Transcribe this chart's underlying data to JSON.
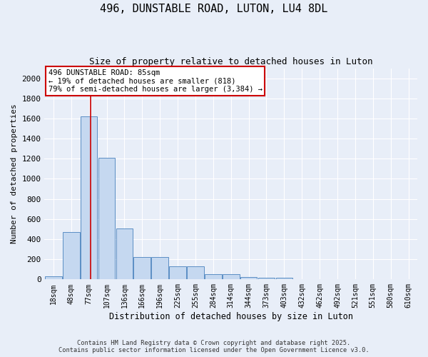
{
  "title1": "496, DUNSTABLE ROAD, LUTON, LU4 8DL",
  "title2": "Size of property relative to detached houses in Luton",
  "xlabel": "Distribution of detached houses by size in Luton",
  "ylabel": "Number of detached properties",
  "categories": [
    "18sqm",
    "48sqm",
    "77sqm",
    "107sqm",
    "136sqm",
    "166sqm",
    "196sqm",
    "225sqm",
    "255sqm",
    "284sqm",
    "314sqm",
    "344sqm",
    "373sqm",
    "403sqm",
    "432sqm",
    "462sqm",
    "492sqm",
    "521sqm",
    "551sqm",
    "580sqm",
    "610sqm"
  ],
  "values": [
    30,
    470,
    1620,
    1210,
    510,
    220,
    220,
    130,
    130,
    50,
    50,
    25,
    20,
    15,
    5,
    3,
    2,
    1,
    1,
    0,
    0
  ],
  "bar_color": "#c5d8f0",
  "bar_edge_color": "#5b8ec4",
  "bg_color": "#e8eef8",
  "grid_color": "#ffffff",
  "annotation_text": "496 DUNSTABLE ROAD: 85sqm\n← 19% of detached houses are smaller (818)\n79% of semi-detached houses are larger (3,384) →",
  "annotation_box_color": "#ffffff",
  "annotation_box_edge": "#cc0000",
  "footer1": "Contains HM Land Registry data © Crown copyright and database right 2025.",
  "footer2": "Contains public sector information licensed under the Open Government Licence v3.0.",
  "ylim": [
    0,
    2100
  ],
  "yticks": [
    0,
    200,
    400,
    600,
    800,
    1000,
    1200,
    1400,
    1600,
    1800,
    2000
  ]
}
